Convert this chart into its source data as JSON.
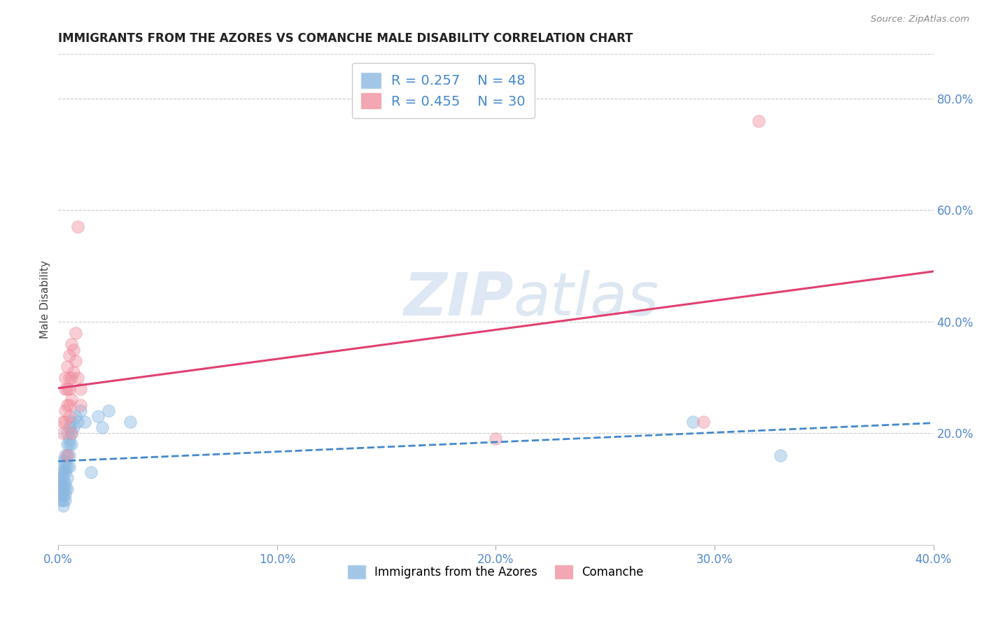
{
  "title": "IMMIGRANTS FROM THE AZORES VS COMANCHE MALE DISABILITY CORRELATION CHART",
  "source": "Source: ZipAtlas.com",
  "xlabel_blue": "Immigrants from the Azores",
  "xlabel_pink": "Comanche",
  "ylabel": "Male Disability",
  "xlim": [
    0.0,
    0.4
  ],
  "ylim": [
    0.0,
    0.88
  ],
  "xticks": [
    0.0,
    0.1,
    0.2,
    0.3,
    0.4
  ],
  "yticks_right": [
    0.2,
    0.4,
    0.6,
    0.8
  ],
  "legend_blue_r": "0.257",
  "legend_blue_n": "48",
  "legend_pink_r": "0.455",
  "legend_pink_n": "30",
  "blue_color": "#8ab8e0",
  "pink_color": "#f090a0",
  "trend_blue_color": "#4488cc",
  "trend_pink_color": "#e04070",
  "blue_scatter": [
    [
      0.001,
      0.13
    ],
    [
      0.001,
      0.11
    ],
    [
      0.001,
      0.1
    ],
    [
      0.001,
      0.09
    ],
    [
      0.001,
      0.12
    ],
    [
      0.001,
      0.08
    ],
    [
      0.002,
      0.15
    ],
    [
      0.002,
      0.13
    ],
    [
      0.002,
      0.11
    ],
    [
      0.002,
      0.12
    ],
    [
      0.002,
      0.1
    ],
    [
      0.002,
      0.09
    ],
    [
      0.002,
      0.08
    ],
    [
      0.002,
      0.07
    ],
    [
      0.003,
      0.16
    ],
    [
      0.003,
      0.15
    ],
    [
      0.003,
      0.14
    ],
    [
      0.003,
      0.13
    ],
    [
      0.003,
      0.11
    ],
    [
      0.003,
      0.1
    ],
    [
      0.003,
      0.09
    ],
    [
      0.003,
      0.08
    ],
    [
      0.004,
      0.2
    ],
    [
      0.004,
      0.18
    ],
    [
      0.004,
      0.16
    ],
    [
      0.004,
      0.14
    ],
    [
      0.004,
      0.12
    ],
    [
      0.004,
      0.1
    ],
    [
      0.005,
      0.21
    ],
    [
      0.005,
      0.19
    ],
    [
      0.005,
      0.18
    ],
    [
      0.005,
      0.16
    ],
    [
      0.005,
      0.14
    ],
    [
      0.006,
      0.22
    ],
    [
      0.006,
      0.2
    ],
    [
      0.006,
      0.18
    ],
    [
      0.007,
      0.21
    ],
    [
      0.008,
      0.23
    ],
    [
      0.009,
      0.22
    ],
    [
      0.01,
      0.24
    ],
    [
      0.012,
      0.22
    ],
    [
      0.015,
      0.13
    ],
    [
      0.018,
      0.23
    ],
    [
      0.02,
      0.21
    ],
    [
      0.023,
      0.24
    ],
    [
      0.033,
      0.22
    ],
    [
      0.29,
      0.22
    ],
    [
      0.33,
      0.16
    ]
  ],
  "pink_scatter": [
    [
      0.002,
      0.22
    ],
    [
      0.002,
      0.2
    ],
    [
      0.003,
      0.3
    ],
    [
      0.003,
      0.28
    ],
    [
      0.003,
      0.24
    ],
    [
      0.003,
      0.22
    ],
    [
      0.004,
      0.32
    ],
    [
      0.004,
      0.28
    ],
    [
      0.004,
      0.25
    ],
    [
      0.004,
      0.16
    ],
    [
      0.005,
      0.34
    ],
    [
      0.005,
      0.3
    ],
    [
      0.005,
      0.28
    ],
    [
      0.005,
      0.25
    ],
    [
      0.005,
      0.23
    ],
    [
      0.006,
      0.36
    ],
    [
      0.006,
      0.3
    ],
    [
      0.006,
      0.26
    ],
    [
      0.006,
      0.2
    ],
    [
      0.007,
      0.35
    ],
    [
      0.007,
      0.31
    ],
    [
      0.008,
      0.38
    ],
    [
      0.008,
      0.33
    ],
    [
      0.009,
      0.57
    ],
    [
      0.009,
      0.3
    ],
    [
      0.01,
      0.28
    ],
    [
      0.01,
      0.25
    ],
    [
      0.295,
      0.22
    ],
    [
      0.2,
      0.19
    ],
    [
      0.32,
      0.76
    ]
  ],
  "watermark_zip": "ZIP",
  "watermark_atlas": "atlas",
  "background_color": "#ffffff",
  "grid_color": "#cccccc"
}
